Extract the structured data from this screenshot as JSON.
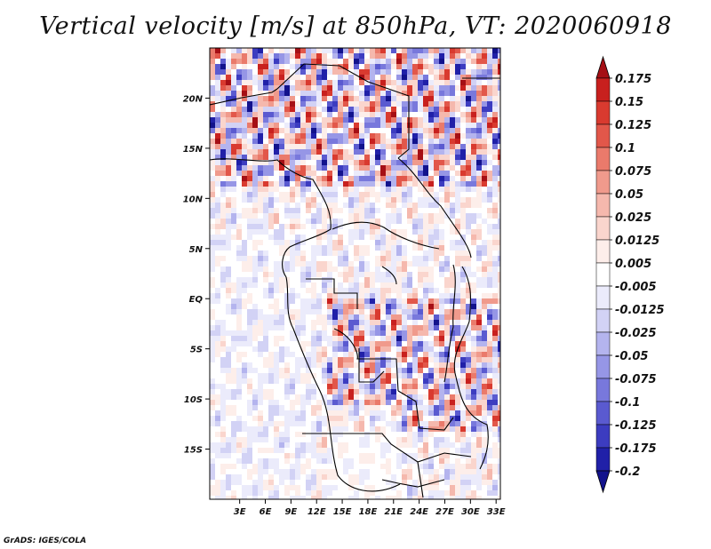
{
  "chart_data": {
    "type": "heatmap",
    "title": "Vertical velocity [m/s] at 850hPa, VT: 2020060918",
    "variable": "Vertical velocity",
    "units": "m/s",
    "level": "850hPa",
    "valid_time": "2020060918",
    "x_axis": {
      "range": [
        -0.5,
        33.5
      ],
      "tick_values": [
        3,
        6,
        9,
        12,
        15,
        18,
        21,
        24,
        27,
        30,
        33
      ],
      "tick_labels": [
        "3E",
        "6E",
        "9E",
        "12E",
        "15E",
        "18E",
        "21E",
        "24E",
        "27E",
        "30E",
        "33E"
      ]
    },
    "y_axis": {
      "range": [
        -20,
        25
      ],
      "tick_values": [
        20,
        15,
        10,
        5,
        0,
        -5,
        -10,
        -15
      ],
      "tick_labels": [
        "20N",
        "15N",
        "10N",
        "5N",
        "EQ",
        "5S",
        "10S",
        "15S"
      ]
    },
    "colorbar": {
      "labels": [
        "0.175",
        "0.15",
        "0.125",
        "0.1",
        "0.075",
        "0.05",
        "0.025",
        "0.0125",
        "0.005",
        "-0.005",
        "-0.0125",
        "-0.025",
        "-0.05",
        "-0.075",
        "-0.1",
        "-0.125",
        "-0.175",
        "-0.2"
      ],
      "colors": [
        "#a50f15",
        "#c8201e",
        "#d93a2f",
        "#e2574a",
        "#ea7a6b",
        "#f09a8c",
        "#f5b8ad",
        "#fad5cd",
        "#fdeeea",
        "#ffffff",
        "#ebebfb",
        "#d2d2f5",
        "#b4b4ee",
        "#9696e6",
        "#7878dc",
        "#5a5ad0",
        "#3c3cc0",
        "#2020a8",
        "#12128c"
      ],
      "extend": "both"
    }
  },
  "footer": "GrADS: IGES/COLA"
}
